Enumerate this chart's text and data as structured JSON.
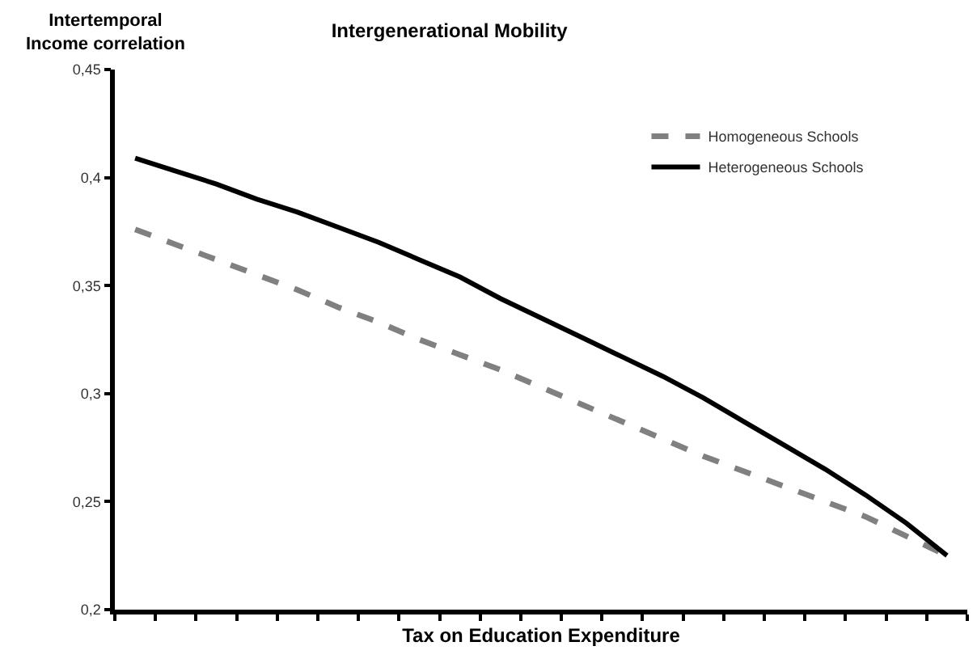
{
  "chart_data": {
    "type": "line",
    "title": "Intergenerational Mobility",
    "xlabel": "Tax on Education Expenditure",
    "ylabel": "Intertemporal\nIncome correlation",
    "categories": [
      null,
      null,
      null,
      null,
      null,
      null,
      null,
      null,
      null,
      null,
      null,
      null,
      null,
      null,
      null,
      null,
      null,
      null,
      null,
      null,
      null
    ],
    "series": [
      {
        "name": "Homogeneous Schools",
        "color": "#808080",
        "line_style": "dashed",
        "values": [
          0.376,
          0.369,
          0.362,
          0.355,
          0.348,
          0.34,
          0.333,
          0.325,
          0.318,
          0.311,
          0.303,
          0.295,
          0.287,
          0.279,
          0.271,
          0.264,
          0.257,
          0.25,
          0.243,
          0.234,
          0.225
        ]
      },
      {
        "name": "Heterogeneous Schools",
        "color": "#000000",
        "line_style": "solid",
        "values": [
          0.409,
          0.403,
          0.397,
          0.39,
          0.384,
          0.377,
          0.37,
          0.362,
          0.354,
          0.344,
          0.335,
          0.326,
          0.317,
          0.308,
          0.298,
          0.287,
          0.276,
          0.265,
          0.253,
          0.24,
          0.225
        ]
      }
    ],
    "ylim": [
      0.2,
      0.45
    ],
    "yticks": [
      {
        "value": 0.2,
        "label": "0,2"
      },
      {
        "value": 0.25,
        "label": "0,25"
      },
      {
        "value": 0.3,
        "label": "0,3"
      },
      {
        "value": 0.35,
        "label": "0,35"
      },
      {
        "value": 0.4,
        "label": "0,4"
      },
      {
        "value": 0.45,
        "label": "0,45"
      }
    ],
    "tick_labels": "y",
    "legend": "top right",
    "marker": "none"
  }
}
